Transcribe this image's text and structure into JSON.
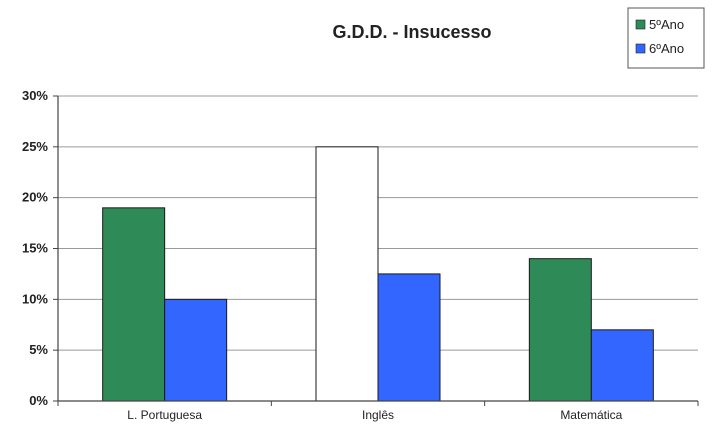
{
  "chart_data": {
    "type": "bar",
    "title": "G.D.D. - Insucesso",
    "categories": [
      "L. Portuguesa",
      "Inglês",
      "Matemática"
    ],
    "series": [
      {
        "name": "5ºAno",
        "values": [
          19,
          25,
          14
        ],
        "color": "#2e8b57"
      },
      {
        "name": "6ºAno",
        "values": [
          10,
          12.5,
          7
        ],
        "color": "#3366ff"
      }
    ],
    "highlight": {
      "series_index": 0,
      "category_index": 1,
      "color": "#ffffff"
    },
    "ylim": [
      0,
      30
    ],
    "yticks": [
      0,
      5,
      10,
      15,
      20,
      25,
      30
    ],
    "ytick_labels": [
      "0%",
      "5%",
      "10%",
      "15%",
      "20%",
      "25%",
      "30%"
    ],
    "grid": true,
    "legend_position": "top-right"
  }
}
